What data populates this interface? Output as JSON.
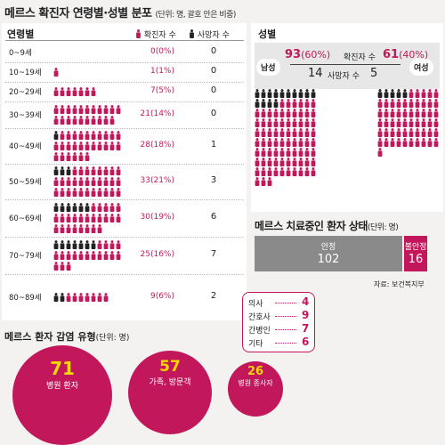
{
  "title": "메르스 확진자 연령별·성별 분포",
  "title_unit": "(단위: 명, 괄호 안은 비중)",
  "age_panel": {
    "heading": "연령별",
    "legend_confirmed": "확진자 수",
    "legend_death": "사망자 수"
  },
  "sex_panel": {
    "heading": "성별",
    "male_label": "남성",
    "female_label": "여성",
    "male_confirmed": "93",
    "male_pct": "(60%)",
    "female_confirmed": "61",
    "female_pct": "(40%)",
    "confirmed_label": "확진자 수",
    "male_deaths": "14",
    "female_deaths": "5",
    "deaths_label": "사망자 수"
  },
  "status": {
    "title": "메르스 치료중인 환자 상태",
    "unit": "(단위: 명)",
    "stable_label": "안정",
    "stable_value": "102",
    "unstable_label": "불안정",
    "unstable_value": "16",
    "source": "자료: 보건복지부"
  },
  "infection": {
    "title": "메르스 환자 감염 유형",
    "unit": "(단위: 명)",
    "patients_value": "71",
    "patients_label": "병원 환자",
    "family_value": "57",
    "family_label": "가족, 방문객",
    "staff_value": "26",
    "staff_label": "병원 종사자",
    "staff_breakdown": [
      {
        "label": "의사",
        "value": "4"
      },
      {
        "label": "간호사",
        "value": "9"
      },
      {
        "label": "간병인",
        "value": "7"
      },
      {
        "label": "기타",
        "value": "6"
      }
    ]
  },
  "colors": {
    "confirmed": "#c2185b",
    "death": "#222222",
    "stable": "#8a8a8a"
  },
  "chart_data": [
    {
      "type": "table",
      "title": "연령별",
      "categories": [
        "0~9세",
        "10~19세",
        "20~29세",
        "30~39세",
        "40~49세",
        "50~59세",
        "60~69세",
        "70~79세",
        "80~89세"
      ],
      "series": [
        {
          "name": "확진자 수",
          "values": [
            0,
            1,
            7,
            21,
            28,
            33,
            30,
            25,
            9
          ],
          "labels": [
            "0(0%)",
            "1(1%)",
            "7(5%)",
            "21(14%)",
            "28(18%)",
            "33(21%)",
            "30(19%)",
            "25(16%)",
            "9(6%)"
          ]
        },
        {
          "name": "사망자 수",
          "values": [
            0,
            0,
            0,
            0,
            1,
            3,
            6,
            7,
            2
          ]
        }
      ]
    },
    {
      "type": "bar",
      "title": "성별",
      "categories": [
        "남성",
        "여성"
      ],
      "series": [
        {
          "name": "확진자 수",
          "values": [
            93,
            61
          ]
        },
        {
          "name": "사망자 수",
          "values": [
            14,
            5
          ]
        }
      ]
    },
    {
      "type": "bar",
      "title": "메르스 치료중인 환자 상태",
      "categories": [
        "안정",
        "불안정"
      ],
      "values": [
        102,
        16
      ]
    },
    {
      "type": "bar",
      "title": "메르스 환자 감염 유형",
      "categories": [
        "병원 환자",
        "가족, 방문객",
        "병원 종사자"
      ],
      "values": [
        71,
        57,
        26
      ]
    }
  ]
}
